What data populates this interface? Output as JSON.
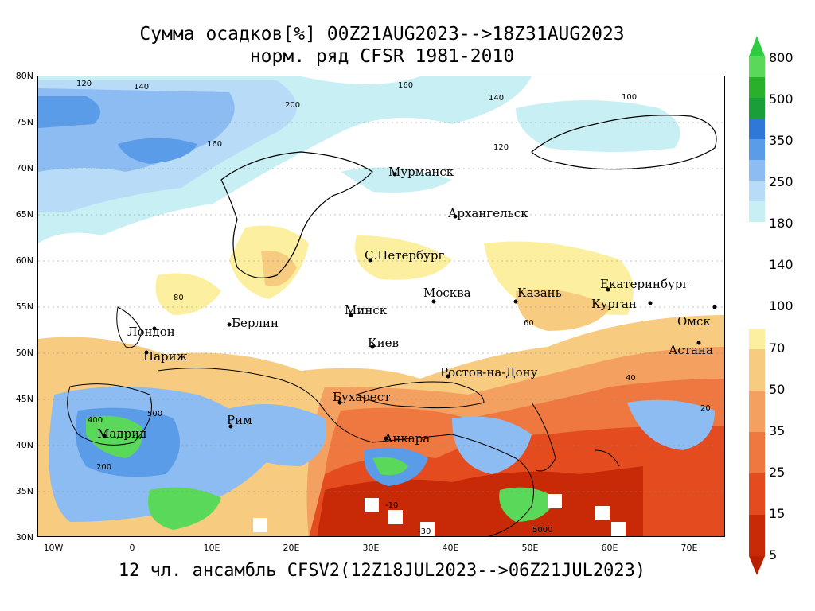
{
  "title": {
    "line1": "Сумма осадков[%] 00Z21AUG2023-->18Z31AUG2023",
    "line2": "норм. ряд CFSR 1981-2010"
  },
  "footer": "12 чл. ансамбль CFSV2(12Z18JUL2023-->06Z21JUL2023)",
  "lat_labels": [
    "80N",
    "75N",
    "70N",
    "65N",
    "60N",
    "55N",
    "50N",
    "45N",
    "40N",
    "35N",
    "30N"
  ],
  "lon_labels": [
    "10W",
    "0",
    "10E",
    "20E",
    "30E",
    "40E",
    "50E",
    "60E",
    "70E"
  ],
  "cities": [
    {
      "name": "Мурманск"
    },
    {
      "name": "Архангельск"
    },
    {
      "name": "С.Петербург"
    },
    {
      "name": "Москва"
    },
    {
      "name": "Казань"
    },
    {
      "name": "Екатеринбург"
    },
    {
      "name": "Курган"
    },
    {
      "name": "Омск"
    },
    {
      "name": "Астана"
    },
    {
      "name": "Минск"
    },
    {
      "name": "Берлин"
    },
    {
      "name": "Лондон"
    },
    {
      "name": "Париж"
    },
    {
      "name": "Киев"
    },
    {
      "name": "Ростов-на-Дону"
    },
    {
      "name": "Бухарест"
    },
    {
      "name": "Рим"
    },
    {
      "name": "Мадрид"
    },
    {
      "name": "Анкара"
    }
  ],
  "contour_labels": [
    "120",
    "140",
    "160",
    "200",
    "140",
    "160",
    "120",
    "100",
    "80",
    "60",
    "40",
    "20",
    "500",
    "400",
    "200",
    "-10",
    "-30",
    "5000"
  ],
  "colorbar": {
    "labels": [
      "800",
      "500",
      "350",
      "250",
      "180",
      "140",
      "100",
      "70",
      "50",
      "35",
      "25",
      "15",
      "5"
    ],
    "colors": {
      "top_arrow": "#2ecc40",
      "c800": "#5ad85a",
      "c500": "#2ab02a",
      "c350": "#1a9e3a",
      "c250": "#2f78d8",
      "c180": "#5a9ce8",
      "c140": "#8cbcf2",
      "c120": "#b8dcf8",
      "c100": "#c8f0f4",
      "c70": "#fcf0a0",
      "c50": "#f8cc80",
      "c35": "#f4a060",
      "c25": "#ee7840",
      "c15": "#e44c20",
      "c5": "#c82a08",
      "bottom_arrow": "#b82000"
    }
  }
}
